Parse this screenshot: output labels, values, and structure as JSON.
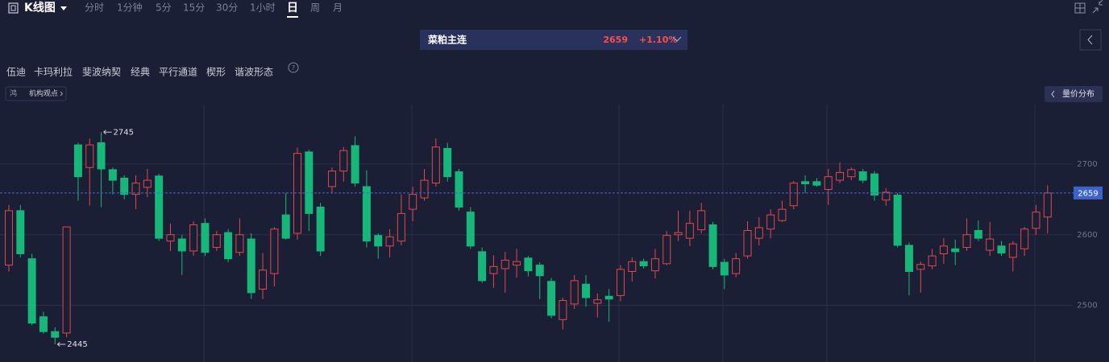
{
  "toolbar": {
    "chart_mode": "K线图",
    "intervals": [
      "分时",
      "1分钟",
      "5分",
      "15分",
      "30分",
      "1小时",
      "日",
      "周",
      "月"
    ],
    "active_interval": 6
  },
  "ticker": {
    "name": "菜粕主连",
    "price": 2659,
    "change": "+1.10%"
  },
  "tools": [
    "伍迪",
    "卡玛利拉",
    "斐波纳契",
    "经典",
    "平行通道",
    "楔形",
    "谐波形态"
  ],
  "opinion_button": "机构观点",
  "volume_profile_button": "量价分布",
  "chart_data": {
    "type": "candlestick",
    "open": [
      2557,
      2634,
      2566,
      2484,
      2463,
      2461,
      2727,
      2695,
      2730,
      2692,
      2680,
      2657,
      2667,
      2683,
      2591,
      2594,
      2577,
      2616,
      2582,
      2603,
      2575,
      2594,
      2523,
      2545,
      2628,
      2602,
      2717,
      2639,
      2668,
      2690,
      2726,
      2668,
      2599,
      2584,
      2591,
      2636,
      2652,
      2673,
      2722,
      2689,
      2632,
      2576,
      2545,
      2552,
      2557,
      2567,
      2557,
      2534,
      2480,
      2502,
      2530,
      2503,
      2513,
      2514,
      2548,
      2562,
      2549,
      2559,
      2600,
      2595,
      2607,
      2614,
      2561,
      2545,
      2570,
      2595,
      2608,
      2620,
      2641,
      2675,
      2675,
      2664,
      2677,
      2682,
      2689,
      2686,
      2649,
      2656,
      2585,
      2551,
      2556,
      2573,
      2580,
      2582,
      2606,
      2578,
      2584,
      2568,
      2580,
      2609,
      2625
    ],
    "high": [
      2642,
      2642,
      2573,
      2491,
      2469,
      2611,
      2730,
      2736,
      2745,
      2695,
      2684,
      2684,
      2693,
      2686,
      2616,
      2600,
      2619,
      2623,
      2605,
      2608,
      2623,
      2602,
      2574,
      2611,
      2659,
      2723,
      2720,
      2645,
      2695,
      2724,
      2739,
      2691,
      2602,
      2608,
      2657,
      2668,
      2693,
      2736,
      2730,
      2693,
      2639,
      2582,
      2571,
      2576,
      2580,
      2570,
      2561,
      2539,
      2511,
      2543,
      2543,
      2517,
      2523,
      2557,
      2568,
      2566,
      2580,
      2605,
      2634,
      2634,
      2645,
      2618,
      2566,
      2574,
      2619,
      2625,
      2636,
      2648,
      2676,
      2684,
      2680,
      2693,
      2702,
      2695,
      2693,
      2690,
      2666,
      2659,
      2589,
      2562,
      2580,
      2595,
      2593,
      2623,
      2620,
      2618,
      2591,
      2591,
      2611,
      2642,
      2670
    ],
    "low": [
      2548,
      2568,
      2472,
      2460,
      2445,
      2455,
      2648,
      2641,
      2639,
      2657,
      2650,
      2636,
      2653,
      2591,
      2577,
      2543,
      2570,
      2570,
      2577,
      2561,
      2570,
      2509,
      2509,
      2527,
      2593,
      2593,
      2605,
      2570,
      2659,
      2675,
      2668,
      2582,
      2566,
      2568,
      2585,
      2619,
      2648,
      2668,
      2675,
      2634,
      2580,
      2532,
      2525,
      2518,
      2539,
      2541,
      2509,
      2482,
      2466,
      2495,
      2498,
      2483,
      2477,
      2506,
      2534,
      2552,
      2538,
      2557,
      2591,
      2584,
      2602,
      2551,
      2523,
      2540,
      2566,
      2585,
      2595,
      2618,
      2636,
      2659,
      2668,
      2642,
      2673,
      2677,
      2673,
      2648,
      2641,
      2582,
      2514,
      2518,
      2551,
      2559,
      2557,
      2577,
      2591,
      2570,
      2570,
      2548,
      2570,
      2600,
      2602
    ],
    "close": [
      2634,
      2573,
      2475,
      2463,
      2455,
      2611,
      2682,
      2727,
      2693,
      2677,
      2657,
      2673,
      2677,
      2595,
      2600,
      2577,
      2614,
      2575,
      2600,
      2566,
      2600,
      2518,
      2550,
      2608,
      2595,
      2715,
      2630,
      2577,
      2690,
      2719,
      2673,
      2591,
      2584,
      2597,
      2630,
      2657,
      2677,
      2724,
      2682,
      2639,
      2584,
      2535,
      2555,
      2564,
      2562,
      2549,
      2542,
      2486,
      2507,
      2535,
      2511,
      2508,
      2509,
      2551,
      2562,
      2556,
      2566,
      2599,
      2603,
      2616,
      2634,
      2555,
      2543,
      2566,
      2606,
      2610,
      2628,
      2636,
      2673,
      2672,
      2670,
      2682,
      2688,
      2692,
      2677,
      2656,
      2660,
      2585,
      2548,
      2558,
      2570,
      2584,
      2576,
      2600,
      2595,
      2594,
      2574,
      2587,
      2608,
      2632,
      2659
    ],
    "up_color": "#e2474c",
    "down_color": "#17b77a",
    "ylim": [
      2420,
      2784
    ],
    "yticks": [
      2500,
      2600,
      2700
    ],
    "grid": true,
    "last_price": 2659,
    "max_label": 2745,
    "min_label": 2445
  }
}
